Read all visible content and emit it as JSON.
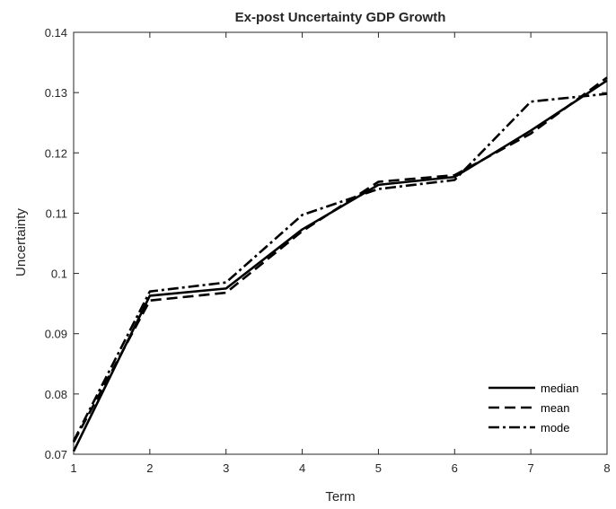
{
  "chart_data": {
    "type": "line",
    "title": "Ex-post Uncertainty GDP Growth",
    "xlabel": "Term",
    "ylabel": "Uncertainty",
    "x": [
      1,
      2,
      3,
      4,
      5,
      6,
      7,
      8
    ],
    "xlim": [
      1,
      8
    ],
    "ylim": [
      0.07,
      0.14
    ],
    "xticks": [
      1,
      2,
      3,
      4,
      5,
      6,
      7,
      8
    ],
    "xtick_labels": [
      "1",
      "2",
      "3",
      "4",
      "5",
      "6",
      "7",
      "8"
    ],
    "yticks": [
      0.07,
      0.08,
      0.09,
      0.1,
      0.11,
      0.12,
      0.13,
      0.14
    ],
    "ytick_labels": [
      "0.07",
      "0.08",
      "0.09",
      "0.1",
      "0.11",
      "0.12",
      "0.13",
      "0.14"
    ],
    "grid": false,
    "legend_position": "bottom-right",
    "series": [
      {
        "name": "median",
        "style": "solid",
        "color": "#000000",
        "values": [
          0.0705,
          0.0963,
          0.0975,
          0.1073,
          0.1147,
          0.116,
          0.1237,
          0.132
        ]
      },
      {
        "name": "mean",
        "style": "dashed",
        "color": "#000000",
        "values": [
          0.072,
          0.0955,
          0.0968,
          0.107,
          0.1152,
          0.1163,
          0.1232,
          0.1325
        ]
      },
      {
        "name": "mode",
        "style": "dashdot",
        "color": "#000000",
        "values": [
          0.0722,
          0.097,
          0.0985,
          0.1097,
          0.114,
          0.1155,
          0.1285,
          0.1298
        ]
      }
    ]
  }
}
